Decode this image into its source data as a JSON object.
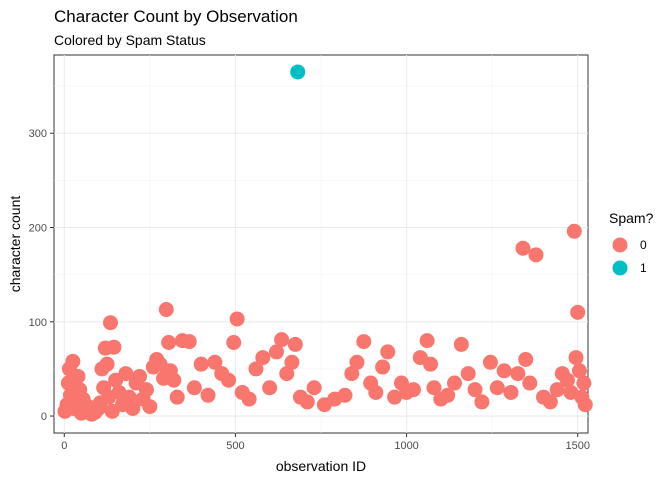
{
  "chart_data": {
    "type": "scatter",
    "title": "Character Count by Observation",
    "subtitle": "Colored by Spam Status",
    "xlabel": "observation ID",
    "ylabel": "character count",
    "xlim": [
      -30,
      1530
    ],
    "ylim": [
      -18,
      383
    ],
    "xticks": [
      0,
      500,
      1000,
      1500
    ],
    "yticks": [
      0,
      100,
      200,
      300
    ],
    "xtick_labels": [
      "0",
      "500",
      "1000",
      "1500"
    ],
    "ytick_labels": [
      "0",
      "100",
      "200",
      "300"
    ],
    "grid": true,
    "legend": {
      "title": "Spam?",
      "position": "right",
      "entries": [
        {
          "label": "0",
          "color": "#F8766D"
        },
        {
          "label": "1",
          "color": "#00BFC4"
        }
      ]
    },
    "series": [
      {
        "name": "0",
        "color": "#F8766D",
        "points": [
          [
            2,
            5
          ],
          [
            8,
            12
          ],
          [
            12,
            35
          ],
          [
            15,
            50
          ],
          [
            18,
            22
          ],
          [
            25,
            58
          ],
          [
            28,
            8
          ],
          [
            35,
            15
          ],
          [
            40,
            42
          ],
          [
            45,
            28
          ],
          [
            50,
            3
          ],
          [
            55,
            18
          ],
          [
            60,
            6
          ],
          [
            70,
            10
          ],
          [
            80,
            2
          ],
          [
            90,
            4
          ],
          [
            100,
            8
          ],
          [
            105,
            14
          ],
          [
            110,
            50
          ],
          [
            115,
            30
          ],
          [
            120,
            72
          ],
          [
            125,
            55
          ],
          [
            130,
            20
          ],
          [
            135,
            99
          ],
          [
            140,
            5
          ],
          [
            145,
            73
          ],
          [
            150,
            38
          ],
          [
            160,
            25
          ],
          [
            170,
            12
          ],
          [
            180,
            45
          ],
          [
            190,
            20
          ],
          [
            200,
            8
          ],
          [
            210,
            35
          ],
          [
            220,
            42
          ],
          [
            230,
            18
          ],
          [
            240,
            28
          ],
          [
            250,
            10
          ],
          [
            260,
            52
          ],
          [
            270,
            60
          ],
          [
            280,
            55
          ],
          [
            290,
            40
          ],
          [
            298,
            113
          ],
          [
            305,
            78
          ],
          [
            310,
            48
          ],
          [
            320,
            38
          ],
          [
            330,
            20
          ],
          [
            345,
            80
          ],
          [
            365,
            79
          ],
          [
            380,
            30
          ],
          [
            400,
            55
          ],
          [
            420,
            22
          ],
          [
            440,
            57
          ],
          [
            460,
            45
          ],
          [
            480,
            38
          ],
          [
            495,
            78
          ],
          [
            505,
            103
          ],
          [
            520,
            25
          ],
          [
            540,
            18
          ],
          [
            560,
            50
          ],
          [
            580,
            62
          ],
          [
            600,
            30
          ],
          [
            620,
            68
          ],
          [
            635,
            81
          ],
          [
            650,
            45
          ],
          [
            665,
            57
          ],
          [
            675,
            76
          ],
          [
            690,
            20
          ],
          [
            710,
            15
          ],
          [
            730,
            30
          ],
          [
            760,
            12
          ],
          [
            790,
            18
          ],
          [
            820,
            22
          ],
          [
            840,
            45
          ],
          [
            855,
            57
          ],
          [
            875,
            79
          ],
          [
            895,
            35
          ],
          [
            910,
            25
          ],
          [
            930,
            52
          ],
          [
            945,
            68
          ],
          [
            965,
            20
          ],
          [
            985,
            35
          ],
          [
            1000,
            25
          ],
          [
            1020,
            28
          ],
          [
            1040,
            62
          ],
          [
            1060,
            80
          ],
          [
            1070,
            55
          ],
          [
            1080,
            30
          ],
          [
            1100,
            18
          ],
          [
            1120,
            22
          ],
          [
            1140,
            35
          ],
          [
            1160,
            76
          ],
          [
            1180,
            45
          ],
          [
            1200,
            28
          ],
          [
            1220,
            15
          ],
          [
            1245,
            57
          ],
          [
            1265,
            30
          ],
          [
            1285,
            48
          ],
          [
            1305,
            25
          ],
          [
            1325,
            45
          ],
          [
            1340,
            178
          ],
          [
            1348,
            60
          ],
          [
            1360,
            35
          ],
          [
            1378,
            171
          ],
          [
            1400,
            20
          ],
          [
            1420,
            15
          ],
          [
            1440,
            28
          ],
          [
            1455,
            45
          ],
          [
            1470,
            38
          ],
          [
            1480,
            25
          ],
          [
            1490,
            196
          ],
          [
            1495,
            62
          ],
          [
            1500,
            110
          ],
          [
            1505,
            48
          ],
          [
            1512,
            20
          ],
          [
            1518,
            35
          ],
          [
            1522,
            12
          ]
        ]
      },
      {
        "name": "1",
        "color": "#00BFC4",
        "points": [
          [
            682,
            365
          ]
        ]
      }
    ]
  }
}
